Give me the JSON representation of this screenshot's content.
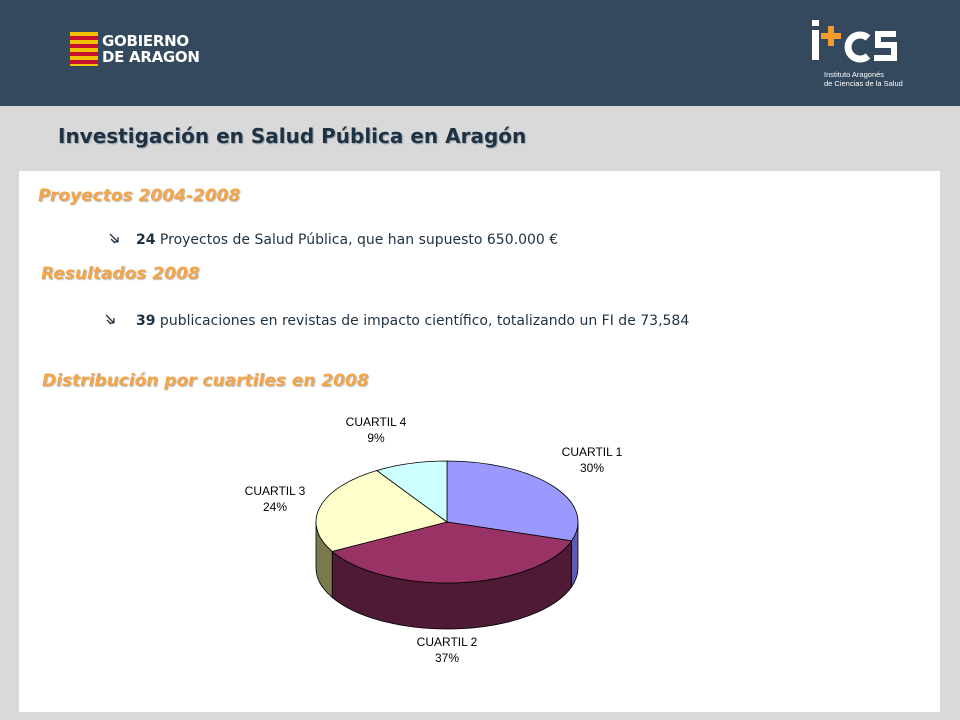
{
  "header": {
    "gov_logo": {
      "line1": "GOBIERNO",
      "line2": "DE ARAGON"
    },
    "ics_logo": {
      "mark": "i+cs",
      "line1": "Instituto Aragonés",
      "line2": "de Ciencias de la Salud"
    }
  },
  "slide": {
    "title": "Investigación en Salud Pública en Aragón",
    "sections": [
      {
        "heading": "Proyectos 2004-2008",
        "bullet_strong": "24",
        "bullet_text": " Proyectos de Salud Pública, que han supuesto 650.000 €"
      },
      {
        "heading": "Resultados 2008",
        "bullet_strong": "39",
        "bullet_text": " publicaciones en revistas de impacto científico, totalizando un FI de 73,584"
      },
      {
        "heading": "Distribución por cuartiles en 2008"
      }
    ]
  },
  "colors": {
    "header_bg": "#34495e",
    "heading_orange": "#f3a54a",
    "title_dark": "#1f3243"
  },
  "chart_data": {
    "type": "pie",
    "style": "3d",
    "title": "",
    "slices": [
      {
        "label": "CUARTIL 1",
        "pct_label": "30%",
        "value": 30,
        "color": "#9999ff",
        "side": "#5c5cb8"
      },
      {
        "label": "CUARTIL 2",
        "pct_label": "37%",
        "value": 37,
        "color": "#993366",
        "side": "#4f1a35"
      },
      {
        "label": "CUARTIL 3",
        "pct_label": "24%",
        "value": 24,
        "color": "#ffffcc",
        "side": "#7a7a4e"
      },
      {
        "label": "CUARTIL 4",
        "pct_label": "9%",
        "value": 9,
        "color": "#ccffff",
        "side": "#6a8a8a"
      }
    ]
  }
}
